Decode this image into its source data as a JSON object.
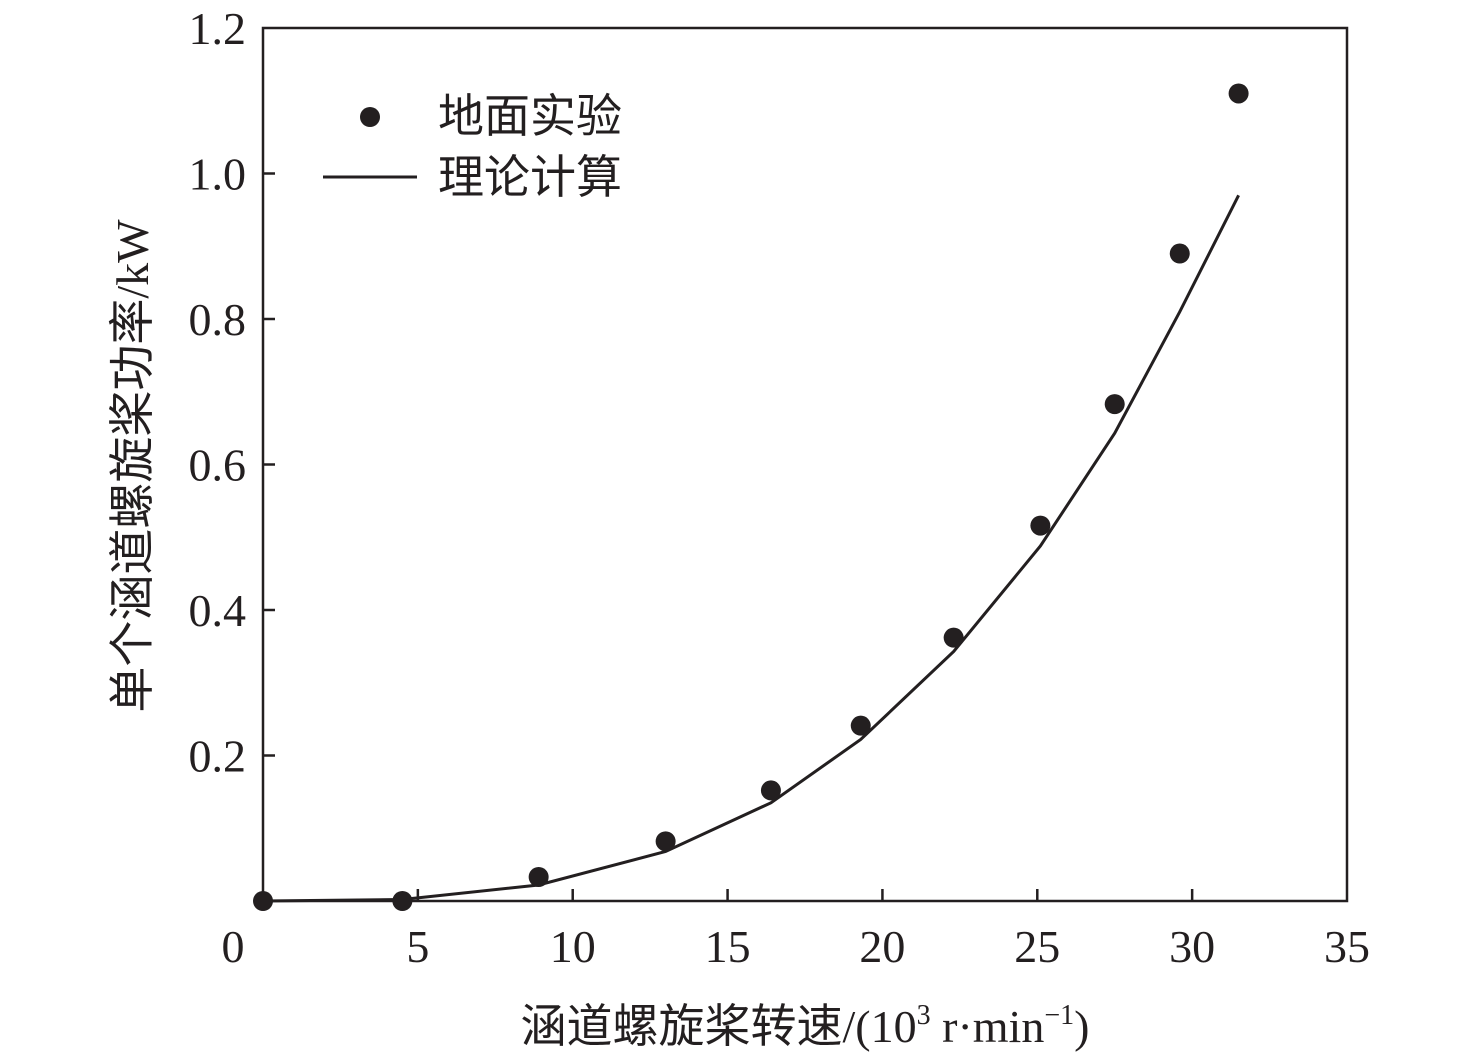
{
  "chart_data": {
    "type": "scatter",
    "title": "",
    "xlabel": "涵道螺旋桨转速/(10",
    "xlabel_exp": "3",
    "xlabel_unit": " r·min",
    "xlabel_unit_exp": "−1",
    "xlabel_close": ")",
    "ylabel": "单个涵道螺旋桨功率/kW",
    "xlim": [
      0,
      35
    ],
    "ylim": [
      0,
      1.2
    ],
    "x_ticks": [
      0,
      5,
      10,
      15,
      20,
      25,
      30,
      35
    ],
    "x_tick_labels": [
      "0",
      "5",
      "10",
      "15",
      "20",
      "25",
      "30",
      "35"
    ],
    "y_ticks": [
      0.2,
      0.4,
      0.6,
      0.8,
      1.0,
      1.2
    ],
    "y_tick_labels": [
      "0.2",
      "0.4",
      "0.6",
      "0.8",
      "1.0",
      "1.2"
    ],
    "grid": false,
    "legend_position": "top-left",
    "series": [
      {
        "name": "地面实验",
        "kind": "scatter",
        "color": "#231f20",
        "x": [
          0,
          4.5,
          8.9,
          13.0,
          16.4,
          19.3,
          22.3,
          25.1,
          27.5,
          29.6,
          31.5
        ],
        "y": [
          0.0,
          0.0,
          0.033,
          0.082,
          0.152,
          0.241,
          0.362,
          0.516,
          0.683,
          0.89,
          1.11
        ]
      },
      {
        "name": "理论计算",
        "kind": "line",
        "color": "#231f20",
        "x": [
          0,
          4.5,
          8.9,
          13.0,
          16.4,
          19.3,
          22.3,
          25.1,
          27.5,
          29.6,
          31.5
        ],
        "y": [
          0.0,
          0.002,
          0.022,
          0.068,
          0.135,
          0.222,
          0.343,
          0.488,
          0.643,
          0.81,
          0.97
        ]
      }
    ]
  }
}
